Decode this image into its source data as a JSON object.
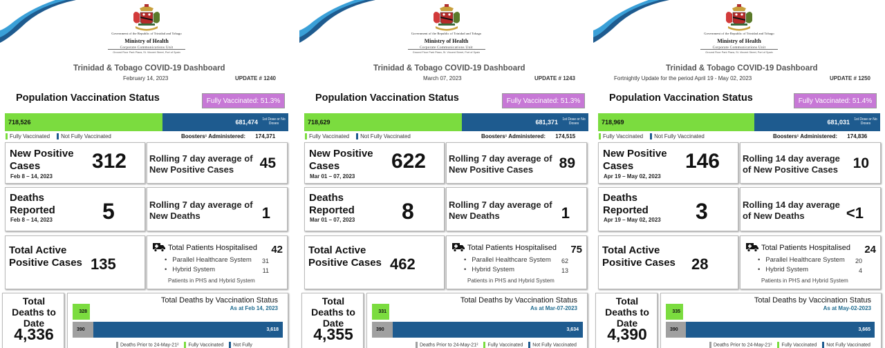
{
  "government": "Government of the Republic of Trinidad and Tobago",
  "ministry": "Ministry of Health",
  "unit": "Corporate Communications Unit",
  "address": "Ground Floor Park Plaza, St. Vincent Street, Port of Spain",
  "dashboard_title": "Trinidad & Tobago COVID-19 Dashboard",
  "labels": {
    "population": "Population Vaccination Status",
    "fully_legend": "Fully Vaccinated",
    "not_fully_legend": "Not Fully Vaccinated",
    "boosters": "Boosters¹ Administered:",
    "dose_note": "1st Dose or No Doses",
    "new_positive": "New Positive Cases",
    "deaths_reported": "Deaths Reported",
    "total_active": "Total Active Positive Cases",
    "total_hosp": "Total Patients Hospitalised",
    "phs": "Parallel Healthcare System",
    "hybrid": "Hybrid System",
    "hosp_note": "Patients in PHS and Hybrid System",
    "total_deaths": "Total Deaths to Date",
    "deaths_by_vax": "Total Deaths by Vaccination Status",
    "deaths_prior": "Deaths Prior to 24-May-21²",
    "fully_vaccinated": "Fully Vaccinated",
    "not_fully": "Not Fully Vaccinated",
    "not_fully_short": "Not Fully"
  },
  "colors": {
    "green": "#7bdc3f",
    "blue": "#1e5b8f",
    "grey": "#a0a0a0",
    "badge": "#c778d6"
  },
  "panels": [
    {
      "date": "February 14, 2023",
      "update": "UPDATE # 1240",
      "fully_pct": "Fully Vaccinated: 51.3%",
      "fully_count": "718,526",
      "not_fully_count": "681,474",
      "boosters": "174,371",
      "period": "Feb 8 – 14, 2023",
      "new_cases": "312",
      "rolling_cases_label": "Rolling 7 day average of New Positive Cases",
      "rolling_cases": "45",
      "deaths": "5",
      "rolling_deaths_label": "Rolling 7 day average of New Deaths",
      "rolling_deaths": "1",
      "active": "135",
      "hosp_total": "42",
      "hosp_phs": "31",
      "hosp_hybrid": "11",
      "deaths_total": "4,336",
      "as_at": "As at Feb 14, 2023",
      "fully_deaths": "328",
      "prior_deaths": "390",
      "notfully_deaths": "3,618"
    },
    {
      "date": "March 07, 2023",
      "update": "UPDATE # 1243",
      "fully_pct": "Fully Vaccinated: 51.3%",
      "fully_count": "718,629",
      "not_fully_count": "681,371",
      "boosters": "174,515",
      "period": "Mar 01 – 07, 2023",
      "new_cases": "622",
      "rolling_cases_label": "Rolling 7 day average of New Positive Cases",
      "rolling_cases": "89",
      "deaths": "8",
      "rolling_deaths_label": "Rolling 7 day average of New Deaths",
      "rolling_deaths": "1",
      "active": "462",
      "hosp_total": "75",
      "hosp_phs": "62",
      "hosp_hybrid": "13",
      "deaths_total": "4,355",
      "as_at": "As at Mar-07-2023",
      "fully_deaths": "331",
      "prior_deaths": "390",
      "notfully_deaths": "3,634"
    },
    {
      "date": "Fortnightly Update for the period April 19 - May 02, 2023",
      "update": "UPDATE # 1250",
      "fully_pct": "Fully Vaccinated: 51.4%",
      "fully_count": "718,969",
      "not_fully_count": "681,031",
      "boosters": "174,836",
      "period": "Apr 19 – May 02, 2023",
      "new_cases": "146",
      "rolling_cases_label": "Rolling 14 day average of New Positive Cases",
      "rolling_cases": "10",
      "deaths": "3",
      "rolling_deaths_label": "Rolling 14 day average of New Deaths",
      "rolling_deaths": "<1",
      "active": "28",
      "hosp_total": "24",
      "hosp_phs": "20",
      "hosp_hybrid": "4",
      "deaths_total": "4,390",
      "as_at": "As at May-02-2023",
      "fully_deaths": "335",
      "prior_deaths": "390",
      "notfully_deaths": "3,665"
    }
  ]
}
